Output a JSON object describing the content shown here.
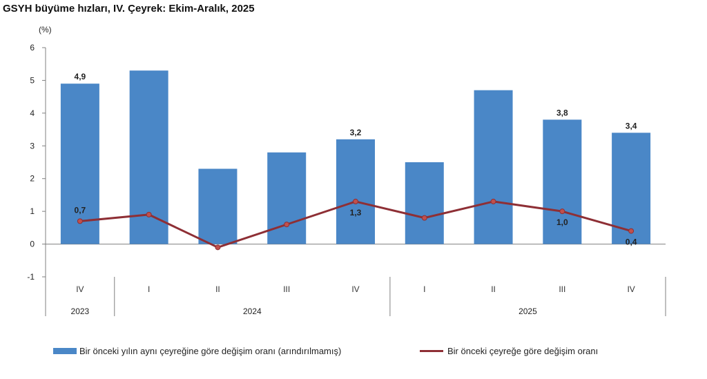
{
  "title": "GSYH büyüme hızları, IV. Çeyrek: Ekim-Aralık, 2025",
  "unit_label": "(%)",
  "colors": {
    "bar": "#4a87c7",
    "line": "#8e2f35",
    "marker": "#c0504d",
    "axis": "#7f7f7f"
  },
  "chart_data": {
    "type": "bar",
    "title": "GSYH büyüme hızları, IV. Çeyrek: Ekim-Aralık, 2025",
    "ylabel": "(%)",
    "ylim": [
      -1,
      6
    ],
    "yticks": [
      "-1",
      "0",
      "1",
      "2",
      "3",
      "4",
      "5",
      "6"
    ],
    "categories": [
      "IV",
      "I",
      "II",
      "III",
      "IV",
      "I",
      "II",
      "III",
      "IV"
    ],
    "year_groups": [
      {
        "label": "2023",
        "count": 1
      },
      {
        "label": "2024",
        "count": 4
      },
      {
        "label": "2025",
        "count": 4
      }
    ],
    "series": [
      {
        "name": "Bir önceki yılın aynı çeyreğine göre değişim oranı (arındırılmamış)",
        "kind": "bar",
        "values": [
          4.9,
          5.3,
          2.3,
          2.8,
          3.2,
          2.5,
          4.7,
          3.8,
          3.4
        ],
        "labels": [
          "4,9",
          "",
          "",
          "",
          "3,2",
          "",
          "",
          "3,8",
          "3,4"
        ]
      },
      {
        "name": "Bir önceki çeyreğe göre değişim oranı",
        "kind": "line",
        "values": [
          0.7,
          0.9,
          -0.1,
          0.6,
          1.3,
          0.8,
          1.3,
          1.0,
          0.4
        ],
        "labels": [
          "0,7",
          "",
          "",
          "",
          "1,3",
          "",
          "",
          "1,0",
          "0,4"
        ]
      }
    ],
    "grid": false,
    "legend": "bottom"
  }
}
